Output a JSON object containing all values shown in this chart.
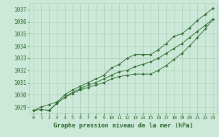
{
  "background_color": "#cce8d8",
  "grid_color": "#aaccb8",
  "line_color": "#2d6a2d",
  "marker_color": "#2d6a2d",
  "xlabel": "Graphe pression niveau de la mer (hPa)",
  "xlabel_fontsize": 6.5,
  "ylabel_fontsize": 6,
  "xlim": [
    -0.5,
    23.5
  ],
  "ylim": [
    1028.5,
    1037.5
  ],
  "yticks": [
    1029,
    1030,
    1031,
    1032,
    1033,
    1034,
    1035,
    1036,
    1037
  ],
  "xticks": [
    0,
    1,
    2,
    3,
    4,
    5,
    6,
    7,
    8,
    9,
    10,
    11,
    12,
    13,
    14,
    15,
    16,
    17,
    18,
    19,
    20,
    21,
    22,
    23
  ],
  "series1": [
    1028.7,
    1029.0,
    1029.2,
    1029.4,
    1030.0,
    1030.4,
    1030.7,
    1031.0,
    1031.3,
    1031.6,
    1032.2,
    1032.5,
    1033.0,
    1033.3,
    1033.3,
    1033.3,
    1033.7,
    1034.2,
    1034.8,
    1035.0,
    1035.5,
    1036.1,
    1036.6,
    1037.1
  ],
  "series2": [
    1028.7,
    1028.8,
    1028.7,
    1029.3,
    1029.8,
    1030.2,
    1030.5,
    1030.8,
    1031.0,
    1031.3,
    1031.6,
    1031.9,
    1032.0,
    1032.3,
    1032.5,
    1032.7,
    1033.0,
    1033.4,
    1033.8,
    1034.2,
    1034.7,
    1035.2,
    1035.7,
    1036.2
  ],
  "series3": [
    1028.7,
    1028.8,
    1028.7,
    1029.3,
    1029.8,
    1030.1,
    1030.4,
    1030.6,
    1030.8,
    1031.0,
    1031.3,
    1031.5,
    1031.6,
    1031.7,
    1031.7,
    1031.7,
    1032.0,
    1032.4,
    1032.9,
    1033.4,
    1034.0,
    1034.7,
    1035.4,
    1036.2
  ]
}
